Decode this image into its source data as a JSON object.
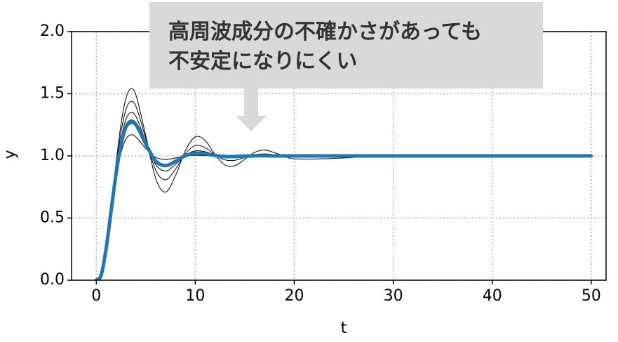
{
  "chart_data": {
    "type": "line",
    "annotation": [
      "高周波成分の不確かさがあっても",
      "不安定になりにくい"
    ],
    "xlabel": "t",
    "ylabel": "y",
    "x": [
      0,
      0.5,
      1,
      1.5,
      2,
      2.5,
      3,
      3.5,
      4,
      5,
      6,
      7,
      8,
      9,
      10,
      11,
      12,
      13,
      14,
      15,
      16,
      17,
      18,
      20,
      30,
      40,
      50
    ],
    "series": [
      {
        "color": "#000000",
        "values": [
          0,
          0.041,
          0.254,
          0.586,
          0.947,
          1.258,
          1.465,
          1.54,
          1.492,
          1.161,
          0.819,
          0.709,
          0.841,
          1.043,
          1.154,
          1.124,
          1.011,
          0.927,
          0.921,
          0.973,
          1.028,
          1.047,
          1.026,
          0.976,
          1,
          1,
          1
        ]
      },
      {
        "color": "#000000",
        "values": [
          0,
          0.04,
          0.254,
          0.573,
          0.911,
          1.193,
          1.374,
          1.439,
          1.4,
          1.14,
          0.885,
          0.808,
          0.894,
          1.018,
          1.083,
          1.066,
          1.009,
          0.968,
          0.965,
          0.988,
          1.01,
          1.016,
          1.01,
          0.993,
          1,
          1,
          1
        ]
      },
      {
        "color": "#000000",
        "values": [
          0,
          0.042,
          0.255,
          0.564,
          0.88,
          1.136,
          1.295,
          1.35,
          1.318,
          1.116,
          0.931,
          0.878,
          0.932,
          1.006,
          1.041,
          1.034,
          1.006,
          0.987,
          0.986,
          0.995,
          1.003,
          1.005,
          1.003,
          0.998,
          1,
          1,
          1
        ]
      },
      {
        "color": "#000000",
        "values": [
          0,
          0.044,
          0.259,
          0.559,
          0.852,
          1.08,
          1.214,
          1.259,
          1.235,
          1.089,
          0.966,
          0.932,
          0.962,
          1.0,
          1.017,
          1.014,
          1.003,
          0.996,
          0.996,
          0.999,
          1,
          1.001,
          1,
          1,
          1,
          1,
          1
        ]
      },
      {
        "color": "#000000",
        "values": [
          0,
          0.047,
          0.271,
          0.562,
          0.831,
          1.026,
          1.136,
          1.17,
          1.153,
          1.059,
          0.988,
          0.971,
          0.984,
          0.999,
          1.005,
          1.003,
          1,
          1,
          1,
          1,
          1,
          1,
          1,
          1,
          1,
          1,
          1
        ]
      },
      {
        "color": "#1f77b4",
        "values": [
          0,
          0.043,
          0.258,
          0.56,
          0.858,
          1.092,
          1.232,
          1.279,
          1.253,
          1.096,
          0.959,
          0.922,
          0.957,
          1.001,
          1.021,
          1.017,
          1.003,
          0.995,
          0.995,
          0.998,
          1.001,
          1.001,
          1,
          1,
          1,
          1,
          1
        ]
      }
    ],
    "xlim": [
      -2.5,
      51.5
    ],
    "ylim": [
      0,
      2
    ],
    "xticks": [
      0,
      10,
      20,
      30,
      40,
      50
    ],
    "yticks": [
      {
        "value": 0,
        "label": "0.0"
      },
      {
        "value": 0.5,
        "label": "0.5"
      },
      {
        "value": 1,
        "label": "1.0"
      },
      {
        "value": 1.5,
        "label": "1.5"
      },
      {
        "value": 2,
        "label": "2.0"
      }
    ],
    "grid": true
  }
}
